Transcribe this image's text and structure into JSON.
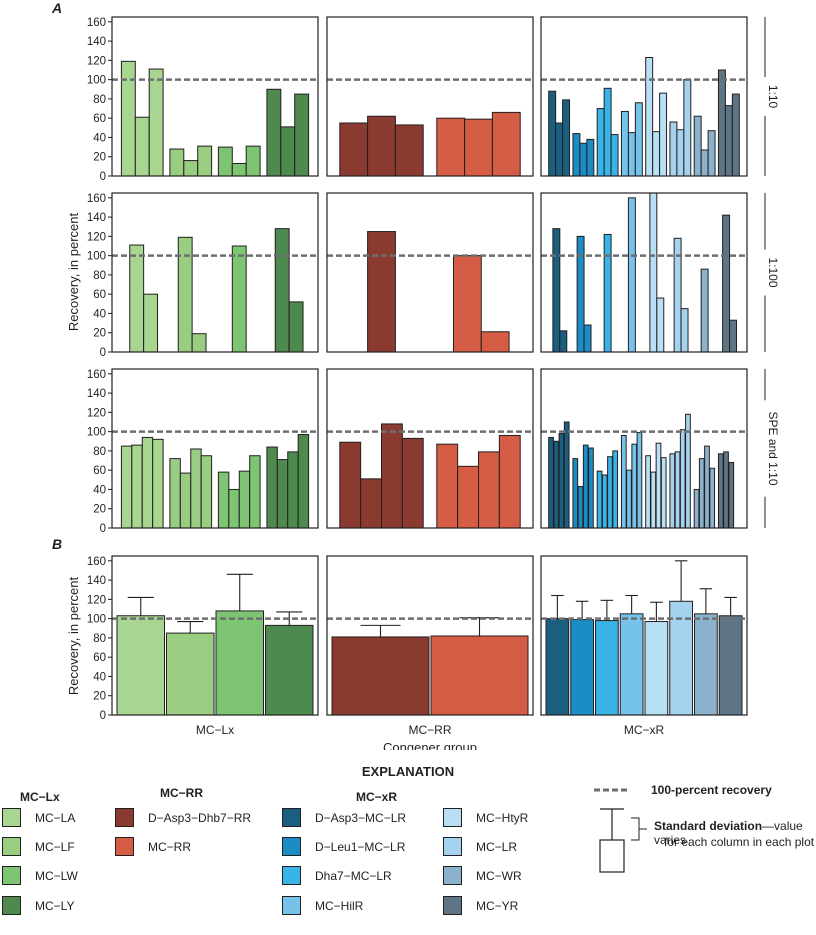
{
  "chart_data": {
    "type": "bar",
    "panel_labels": [
      "A",
      "B"
    ],
    "y_axis_label": "Recovery, in percent",
    "x_axis_label": "Congener group",
    "ylim": [
      0,
      165
    ],
    "y_ticks": [
      "0",
      "20",
      "40",
      "60",
      "80",
      "100",
      "120",
      "140",
      "160"
    ],
    "reference_line": {
      "value": 100,
      "label": "100-percent recovery"
    },
    "column_groups": [
      "MC−Lx",
      "MC−RR",
      "MC−xR"
    ],
    "row_labels": [
      "1:10",
      "1:100",
      "SPE and 1:10"
    ],
    "series": {
      "MC-LA": "#a8d58f",
      "MC-LF": "#98cd82",
      "MC-LW": "#7dc473",
      "MC-LY": "#4e8a4e",
      "D-Asp3-Dhb7-RR": "#8b3a30",
      "MC-RR": "#d55c45",
      "D-Asp3-MC-LR": "#1a5e80",
      "D-Leu1-MC-LR": "#1b8cc4",
      "Dha7-MC-LR": "#38b4e6",
      "MC-HilR": "#75c3ea",
      "MC-HtyR": "#b8e0f5",
      "MC-LR": "#a5d2ee",
      "MC-WR": "#8ab2cc",
      "MC-YR": "#5d7585"
    },
    "panel_a": [
      [
        {
          "groups": [
            {
              "series": "MC-LA",
              "values": [
                119,
                61,
                111
              ]
            },
            {
              "series": "MC-LF",
              "values": [
                28,
                16,
                31
              ]
            },
            {
              "series": "MC-LW",
              "values": [
                30,
                13,
                31
              ]
            },
            {
              "series": "MC-LY",
              "values": [
                90,
                51,
                85
              ]
            }
          ]
        },
        {
          "groups": [
            {
              "series": "D-Asp3-Dhb7-RR",
              "values": [
                55,
                62,
                53
              ]
            },
            {
              "series": "MC-RR",
              "values": [
                60,
                59,
                66
              ]
            }
          ]
        },
        {
          "groups": [
            {
              "series": "D-Asp3-MC-LR",
              "values": [
                88,
                55,
                79
              ]
            },
            {
              "series": "D-Leu1-MC-LR",
              "values": [
                44,
                34,
                38
              ]
            },
            {
              "series": "Dha7-MC-LR",
              "values": [
                70,
                91,
                43
              ]
            },
            {
              "series": "MC-HilR",
              "values": [
                67,
                45,
                76
              ]
            },
            {
              "series": "MC-HtyR",
              "values": [
                123,
                46,
                86
              ]
            },
            {
              "series": "MC-LR",
              "values": [
                56,
                48,
                100
              ]
            },
            {
              "series": "MC-WR",
              "values": [
                62,
                27,
                47
              ]
            },
            {
              "series": "MC-YR",
              "values": [
                110,
                73,
                85
              ]
            }
          ]
        }
      ],
      [
        {
          "groups": [
            {
              "series": "MC-LA",
              "values": [
                111,
                60
              ]
            },
            {
              "series": "MC-LF",
              "values": [
                119,
                19
              ]
            },
            {
              "series": "MC-LW",
              "values": [
                110
              ]
            },
            {
              "series": "MC-LY",
              "values": [
                128,
                52
              ]
            }
          ]
        },
        {
          "groups": [
            {
              "series": "D-Asp3-Dhb7-RR",
              "values": [
                125
              ]
            },
            {
              "series": "MC-RR",
              "values": [
                100,
                21
              ]
            }
          ]
        },
        {
          "groups": [
            {
              "series": "D-Asp3-MC-LR",
              "values": [
                128,
                22
              ]
            },
            {
              "series": "D-Leu1-MC-LR",
              "values": [
                120,
                28
              ]
            },
            {
              "series": "Dha7-MC-LR",
              "values": [
                122
              ]
            },
            {
              "series": "MC-HilR",
              "values": [
                160
              ]
            },
            {
              "series": "MC-HtyR",
              "values": [
                166,
                56
              ]
            },
            {
              "series": "MC-LR",
              "values": [
                118,
                45
              ]
            },
            {
              "series": "MC-WR",
              "values": [
                86
              ]
            },
            {
              "series": "MC-YR",
              "values": [
                142,
                33
              ]
            }
          ]
        }
      ],
      [
        {
          "groups": [
            {
              "series": "MC-LA",
              "values": [
                85,
                86,
                94,
                92
              ]
            },
            {
              "series": "MC-LF",
              "values": [
                72,
                57,
                82,
                75
              ]
            },
            {
              "series": "MC-LW",
              "values": [
                58,
                40,
                59,
                75
              ]
            },
            {
              "series": "MC-LY",
              "values": [
                84,
                71,
                79,
                97
              ]
            }
          ]
        },
        {
          "groups": [
            {
              "series": "D-Asp3-Dhb7-RR",
              "values": [
                89,
                51,
                108,
                93
              ]
            },
            {
              "series": "MC-RR",
              "values": [
                87,
                64,
                79,
                96
              ]
            }
          ]
        },
        {
          "groups": [
            {
              "series": "D-Asp3-MC-LR",
              "values": [
                94,
                90,
                98,
                110
              ]
            },
            {
              "series": "D-Leu1-MC-LR",
              "values": [
                72,
                43,
                86,
                83
              ]
            },
            {
              "series": "Dha7-MC-LR",
              "values": [
                59,
                55,
                74,
                80
              ]
            },
            {
              "series": "MC-HilR",
              "values": [
                96,
                60,
                87,
                99
              ]
            },
            {
              "series": "MC-HtyR",
              "values": [
                75,
                58,
                88,
                73
              ]
            },
            {
              "series": "MC-LR",
              "values": [
                77,
                79,
                102,
                118
              ]
            },
            {
              "series": "MC-WR",
              "values": [
                40,
                72,
                85,
                62
              ]
            },
            {
              "series": "MC-YR",
              "values": [
                77,
                79,
                68
              ]
            }
          ]
        }
      ]
    ],
    "panel_b": [
      {
        "series": [
          "MC-LA",
          "MC-LF",
          "MC-LW",
          "MC-LY"
        ],
        "means": [
          103,
          85,
          108,
          93
        ],
        "sd_tops": [
          122,
          97,
          146,
          107
        ]
      },
      {
        "series": [
          "D-Asp3-Dhb7-RR",
          "MC-RR"
        ],
        "means": [
          81,
          82
        ],
        "sd_tops": [
          93,
          101
        ]
      },
      {
        "series": [
          "D-Asp3-MC-LR",
          "D-Leu1-MC-LR",
          "Dha7-MC-LR",
          "MC-HilR",
          "MC-HtyR",
          "MC-LR",
          "MC-WR",
          "MC-YR"
        ],
        "means": [
          100,
          99,
          98,
          105,
          97,
          118,
          105,
          103
        ],
        "sd_tops": [
          124,
          118,
          119,
          124,
          117,
          160,
          131,
          122
        ]
      }
    ]
  },
  "legend": {
    "title": "EXPLANATION",
    "groups": [
      {
        "name": "MC−Lx",
        "items": [
          {
            "label": "MC−LA",
            "color": "#a8d58f"
          },
          {
            "label": "MC−LF",
            "color": "#98cd82"
          },
          {
            "label": "MC−LW",
            "color": "#7dc473"
          },
          {
            "label": "MC−LY",
            "color": "#4e8a4e"
          }
        ]
      },
      {
        "name": "MC−RR",
        "items": [
          {
            "label": "D−Asp3−Dhb7−RR",
            "color": "#8b3a30"
          },
          {
            "label": "MC−RR",
            "color": "#d55c45"
          }
        ]
      },
      {
        "name": "MC−xR",
        "items": [
          {
            "label": "D−Asp3−MC−LR",
            "color": "#1a5e80"
          },
          {
            "label": "D−Leu1−MC−LR",
            "color": "#1b8cc4"
          },
          {
            "label": "Dha7−MC−LR",
            "color": "#38b4e6"
          },
          {
            "label": "MC−HilR",
            "color": "#75c3ea"
          },
          {
            "label": "MC−HtyR",
            "color": "#b8e0f5"
          },
          {
            "label": "MC−LR",
            "color": "#a5d2ee"
          },
          {
            "label": "MC−WR",
            "color": "#8ab2cc"
          },
          {
            "label": "MC−YR",
            "color": "#5d7585"
          }
        ]
      }
    ],
    "recovery_note": "100-percent recovery",
    "sd_note_bold": "Standard deviation",
    "sd_note_line1": "—value varies",
    "sd_note_line2": "for each column in each plot"
  }
}
